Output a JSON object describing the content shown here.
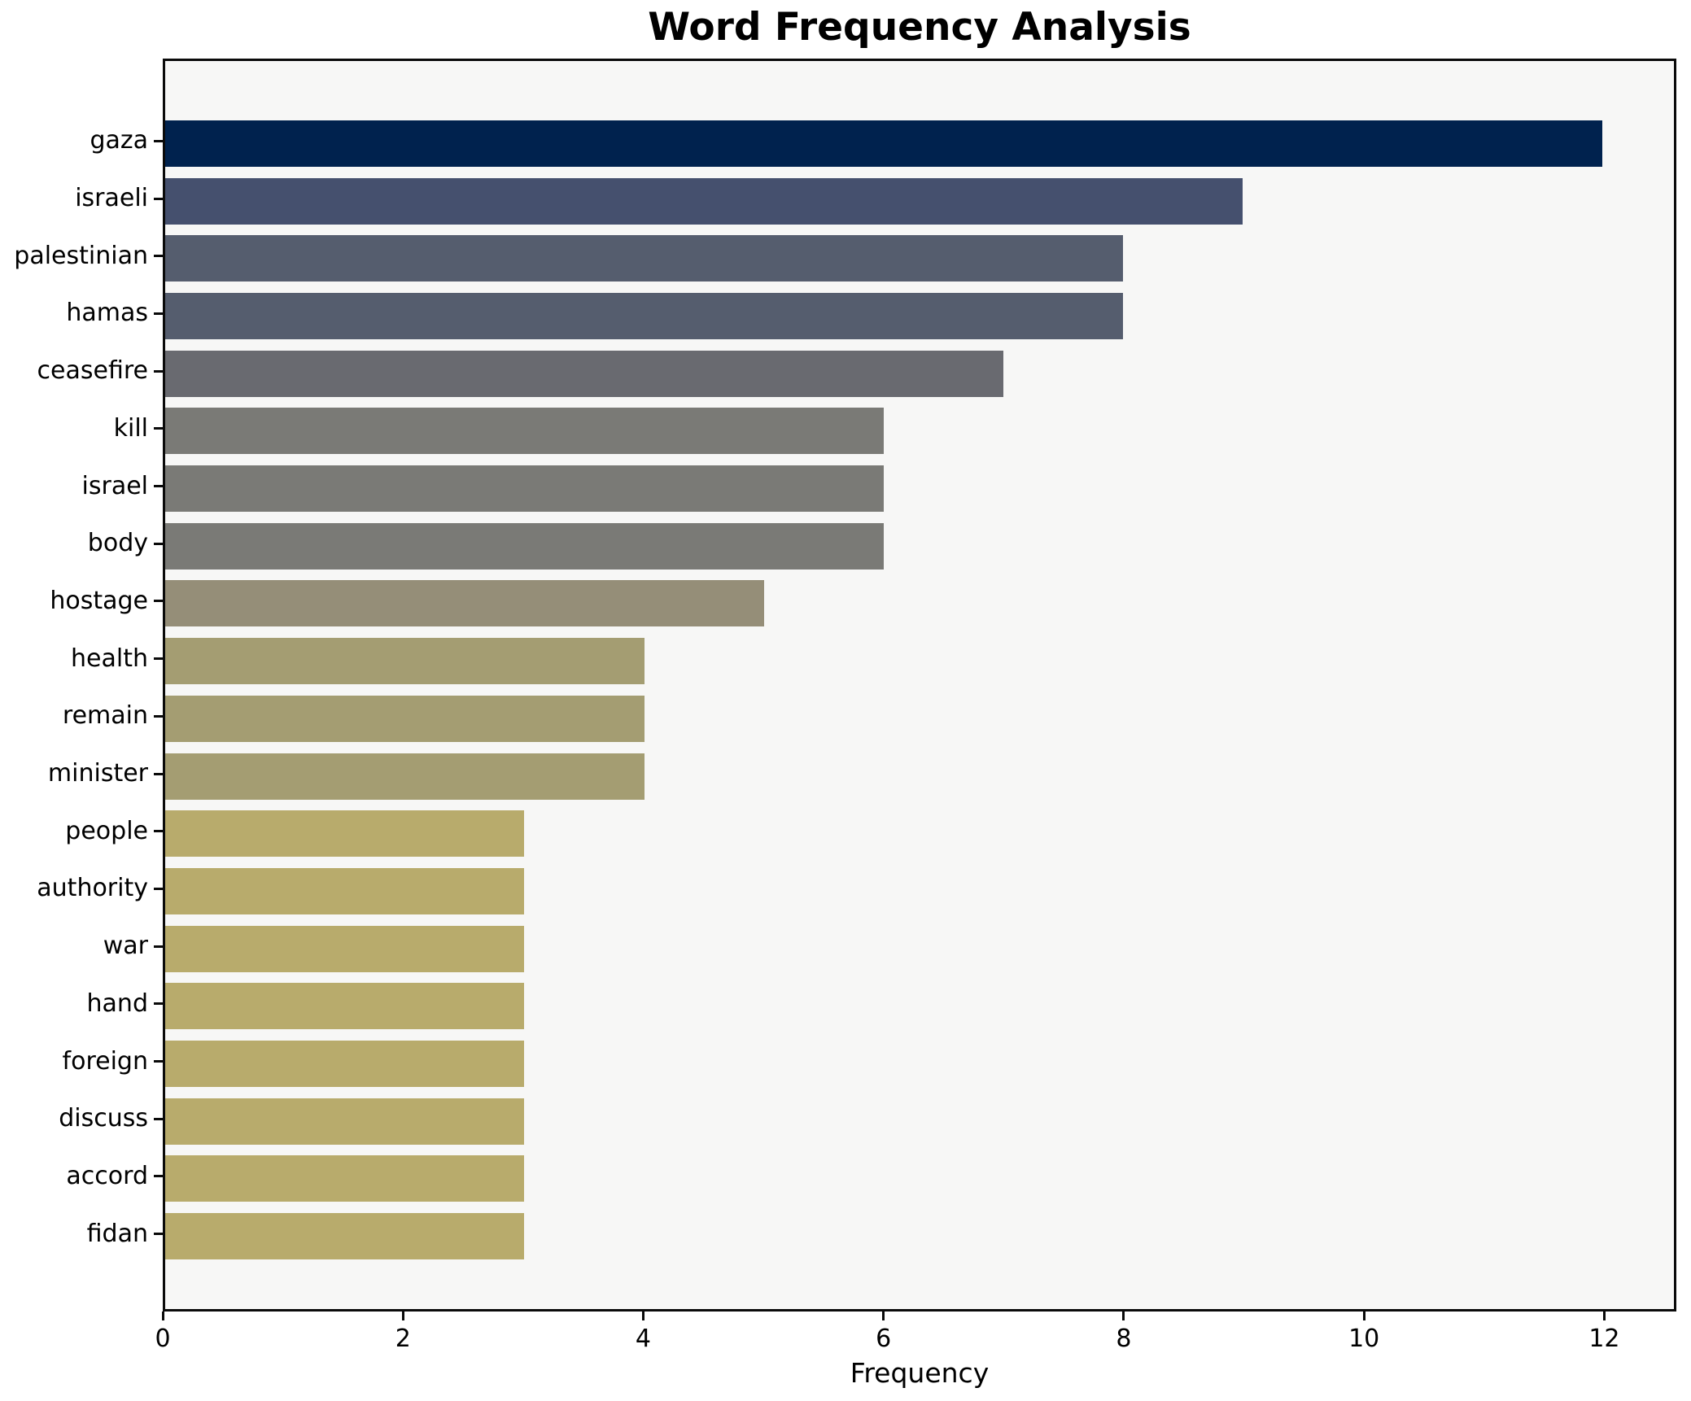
{
  "chart_data": {
    "type": "bar",
    "orientation": "horizontal",
    "title": "Word Frequency Analysis",
    "xlabel": "Frequency",
    "ylabel": "",
    "categories": [
      "gaza",
      "israeli",
      "palestinian",
      "hamas",
      "ceasefire",
      "kill",
      "israel",
      "body",
      "hostage",
      "health",
      "remain",
      "minister",
      "people",
      "authority",
      "war",
      "hand",
      "foreign",
      "discuss",
      "accord",
      "fidan"
    ],
    "values": [
      12,
      9,
      8,
      8,
      7,
      6,
      6,
      6,
      5,
      4,
      4,
      4,
      3,
      3,
      3,
      3,
      3,
      3,
      3,
      3
    ],
    "bar_colors": [
      "#00224e",
      "#45506e",
      "#555d6e",
      "#555d6e",
      "#696a70",
      "#7a7a76",
      "#7a7a76",
      "#7a7a76",
      "#958e78",
      "#a49d72",
      "#a49d72",
      "#a49d72",
      "#b8ab6c",
      "#b8ab6c",
      "#b8ab6c",
      "#b8ab6c",
      "#b8ab6c",
      "#b8ab6c",
      "#b8ab6c",
      "#b8ab6c"
    ],
    "xlim": [
      0,
      12.6
    ],
    "xticks": [
      0,
      2,
      4,
      6,
      8,
      10,
      12
    ],
    "grid": false,
    "legend": null,
    "bar_height_fraction": 0.8,
    "plot_background": "#f7f7f6",
    "figure_background": "#ffffff",
    "spine_color": "#0a0a0a",
    "text_color": "#000000"
  }
}
